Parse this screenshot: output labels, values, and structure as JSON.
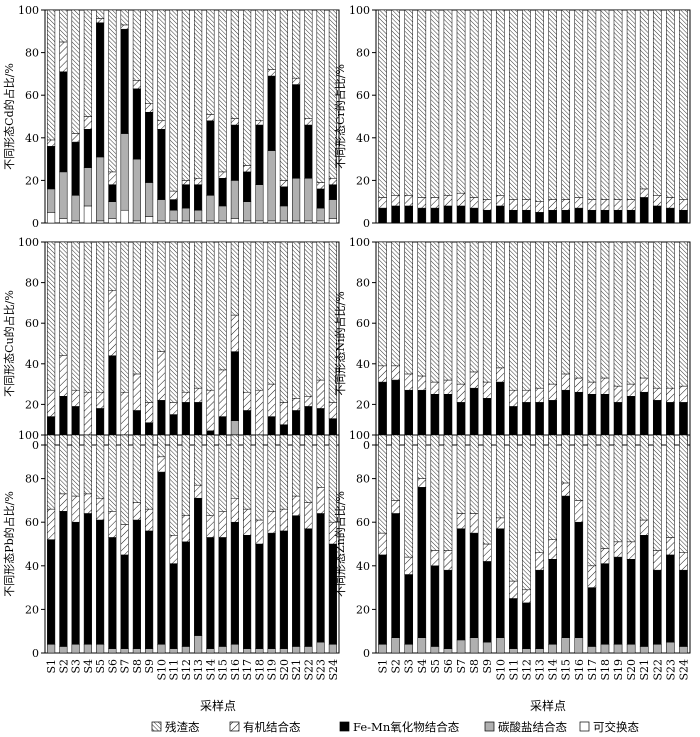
{
  "figure": {
    "x_title": "采样点",
    "legend": [
      {
        "key": "residual",
        "label": "残渣态"
      },
      {
        "key": "organic",
        "label": "有机结合态"
      },
      {
        "key": "femn",
        "label": "Fe-Mn氧化物结合态"
      },
      {
        "key": "carbonate",
        "label": "碳酸盐结合态"
      },
      {
        "key": "exchangeable",
        "label": "可交换态"
      }
    ],
    "colors": {
      "femn": "#000000",
      "carbonate": "#b0b0b0",
      "exchangeable": "#ffffff",
      "organic": "hatch-wide",
      "residual": "hatch-dense"
    }
  },
  "chart_data": [
    {
      "type": "bar",
      "stacked": true,
      "id": "Cd",
      "ylabel": "不同形态Cd的占比/%",
      "ylim": [
        0,
        100
      ],
      "yticks": [
        0,
        20,
        40,
        60,
        80,
        100
      ],
      "categories": [
        "S1",
        "S2",
        "S3",
        "S4",
        "S5",
        "S6",
        "S7",
        "S8",
        "S9",
        "S10",
        "S11",
        "S12",
        "S13",
        "S14",
        "S15",
        "S16",
        "S17",
        "S18",
        "S19",
        "S20",
        "S21",
        "S22",
        "S23",
        "S24"
      ],
      "series": [
        {
          "name": "可交换态",
          "key": "exchangeable",
          "values": [
            5,
            2,
            1,
            8,
            1,
            2,
            6,
            1,
            3,
            1,
            1,
            1,
            1,
            1,
            1,
            2,
            1,
            1,
            1,
            1,
            1,
            1,
            1,
            2
          ]
        },
        {
          "name": "碳酸盐结合态",
          "key": "carbonate",
          "values": [
            11,
            22,
            12,
            18,
            30,
            8,
            36,
            29,
            16,
            10,
            5,
            6,
            5,
            12,
            7,
            18,
            9,
            17,
            33,
            7,
            20,
            20,
            6,
            9
          ]
        },
        {
          "name": "Fe-Mn氧化物结合态",
          "key": "femn",
          "values": [
            20,
            47,
            25,
            18,
            63,
            8,
            49,
            33,
            33,
            33,
            5,
            11,
            12,
            35,
            13,
            26,
            14,
            28,
            35,
            9,
            44,
            25,
            9,
            7
          ]
        },
        {
          "name": "有机结合态",
          "key": "organic",
          "values": [
            3,
            14,
            4,
            6,
            2,
            6,
            2,
            4,
            4,
            4,
            4,
            2,
            3,
            3,
            3,
            3,
            3,
            2,
            3,
            3,
            3,
            3,
            3,
            3
          ]
        },
        {
          "name": "残渣态",
          "key": "residual",
          "values": [
            61,
            15,
            58,
            50,
            4,
            76,
            7,
            33,
            44,
            52,
            85,
            80,
            79,
            49,
            76,
            51,
            73,
            52,
            28,
            80,
            32,
            51,
            81,
            79
          ]
        }
      ]
    },
    {
      "type": "bar",
      "stacked": true,
      "id": "Cr",
      "ylabel": "不同形态Cr的占比/%",
      "ylim": [
        0,
        100
      ],
      "yticks": [
        0,
        20,
        40,
        60,
        80,
        100
      ],
      "categories": [
        "S1",
        "S2",
        "S3",
        "S4",
        "S5",
        "S6",
        "S7",
        "S8",
        "S9",
        "S10",
        "S11",
        "S12",
        "S13",
        "S14",
        "S15",
        "S16",
        "S17",
        "S18",
        "S19",
        "S20",
        "S21",
        "S22",
        "S23",
        "S24"
      ],
      "series": [
        {
          "name": "可交换态",
          "key": "exchangeable",
          "values": [
            0,
            0,
            0,
            0,
            0,
            0,
            0,
            0,
            0,
            0,
            0,
            0,
            0,
            0,
            0,
            0,
            0,
            0,
            0,
            0,
            0,
            0,
            0,
            0
          ]
        },
        {
          "name": "碳酸盐结合态",
          "key": "carbonate",
          "values": [
            0,
            0,
            0,
            0,
            0,
            0,
            0,
            0,
            0,
            0,
            0,
            0,
            0,
            0,
            0,
            0,
            0,
            0,
            0,
            0,
            0,
            0,
            0,
            0
          ]
        },
        {
          "name": "Fe-Mn氧化物结合态",
          "key": "femn",
          "values": [
            7,
            8,
            8,
            7,
            7,
            8,
            8,
            7,
            6,
            8,
            6,
            6,
            5,
            6,
            6,
            7,
            6,
            6,
            6,
            6,
            12,
            8,
            7,
            6
          ]
        },
        {
          "name": "有机结合态",
          "key": "organic",
          "values": [
            5,
            5,
            5,
            5,
            5,
            5,
            6,
            5,
            5,
            5,
            5,
            5,
            5,
            5,
            5,
            5,
            5,
            5,
            5,
            5,
            4,
            5,
            5,
            5
          ]
        },
        {
          "name": "残渣态",
          "key": "residual",
          "values": [
            88,
            87,
            87,
            88,
            88,
            87,
            86,
            88,
            89,
            87,
            89,
            89,
            90,
            89,
            89,
            88,
            89,
            89,
            89,
            89,
            84,
            87,
            88,
            89
          ]
        }
      ]
    },
    {
      "type": "bar",
      "stacked": true,
      "id": "Cu",
      "ylabel": "不同形态Cu的占比/%",
      "ylim": [
        0,
        100
      ],
      "yticks": [
        0,
        20,
        40,
        60,
        80,
        100
      ],
      "categories": [
        "S1",
        "S2",
        "S3",
        "S4",
        "S5",
        "S6",
        "S7",
        "S8",
        "S9",
        "S10",
        "S11",
        "S12",
        "S13",
        "S14",
        "S15",
        "S16",
        "S17",
        "S18",
        "S19",
        "S20",
        "S21",
        "S22",
        "S23",
        "S24"
      ],
      "series": [
        {
          "name": "可交换态",
          "key": "exchangeable",
          "values": [
            0,
            0,
            0,
            0,
            0,
            0,
            0,
            0,
            0,
            0,
            0,
            0,
            0,
            0,
            0,
            0,
            0,
            0,
            0,
            0,
            0,
            0,
            0,
            0
          ]
        },
        {
          "name": "碳酸盐结合态",
          "key": "carbonate",
          "values": [
            2,
            4,
            1,
            1,
            1,
            1,
            1,
            1,
            1,
            3,
            1,
            1,
            1,
            1,
            1,
            12,
            1,
            1,
            1,
            1,
            1,
            1,
            1,
            1
          ]
        },
        {
          "name": "Fe-Mn氧化物结合态",
          "key": "femn",
          "values": [
            12,
            20,
            18,
            3,
            17,
            43,
            3,
            16,
            10,
            19,
            14,
            20,
            20,
            6,
            13,
            34,
            16,
            4,
            13,
            9,
            16,
            18,
            17,
            12
          ]
        },
        {
          "name": "有机结合态",
          "key": "organic",
          "values": [
            13,
            20,
            8,
            22,
            8,
            32,
            22,
            18,
            10,
            24,
            6,
            5,
            7,
            20,
            23,
            18,
            9,
            22,
            16,
            11,
            6,
            5,
            14,
            8
          ]
        },
        {
          "name": "残渣态",
          "key": "residual",
          "values": [
            73,
            56,
            73,
            74,
            74,
            24,
            74,
            65,
            79,
            54,
            79,
            74,
            72,
            73,
            63,
            36,
            74,
            73,
            70,
            79,
            77,
            76,
            68,
            79
          ]
        }
      ]
    },
    {
      "type": "bar",
      "stacked": true,
      "id": "Ni",
      "ylabel": "不同形态Ni的占比/%",
      "ylim": [
        0,
        100
      ],
      "yticks": [
        0,
        20,
        40,
        60,
        80,
        100
      ],
      "categories": [
        "S1",
        "S2",
        "S3",
        "S4",
        "S5",
        "S6",
        "S7",
        "S8",
        "S9",
        "S10",
        "S11",
        "S12",
        "S13",
        "S14",
        "S15",
        "S16",
        "S17",
        "S18",
        "S19",
        "S20",
        "S21",
        "S22",
        "S23",
        "S24"
      ],
      "series": [
        {
          "name": "可交换态",
          "key": "exchangeable",
          "values": [
            0,
            0,
            0,
            0,
            0,
            0,
            0,
            0,
            0,
            0,
            0,
            0,
            0,
            0,
            0,
            0,
            0,
            0,
            0,
            0,
            0,
            0,
            0,
            0
          ]
        },
        {
          "name": "碳酸盐结合态",
          "key": "carbonate",
          "values": [
            1,
            1,
            1,
            1,
            1,
            1,
            1,
            1,
            1,
            1,
            1,
            1,
            1,
            1,
            1,
            1,
            1,
            1,
            1,
            1,
            1,
            1,
            1,
            1
          ]
        },
        {
          "name": "Fe-Mn氧化物结合态",
          "key": "femn",
          "values": [
            30,
            31,
            26,
            26,
            24,
            24,
            20,
            27,
            22,
            30,
            18,
            20,
            20,
            21,
            26,
            25,
            24,
            24,
            20,
            23,
            25,
            21,
            20,
            20
          ]
        },
        {
          "name": "有机结合态",
          "key": "organic",
          "values": [
            8,
            7,
            8,
            7,
            6,
            7,
            9,
            8,
            8,
            7,
            8,
            6,
            7,
            8,
            8,
            7,
            6,
            8,
            8,
            6,
            7,
            6,
            7,
            8
          ]
        },
        {
          "name": "残渣态",
          "key": "residual",
          "values": [
            61,
            61,
            65,
            66,
            69,
            68,
            70,
            64,
            69,
            62,
            73,
            73,
            72,
            70,
            65,
            67,
            69,
            67,
            71,
            70,
            67,
            72,
            72,
            71
          ]
        }
      ]
    },
    {
      "type": "bar",
      "stacked": true,
      "id": "Pb",
      "ylabel": "不同形态Pb的占比/%",
      "ylim": [
        0,
        100
      ],
      "yticks": [
        0,
        20,
        40,
        60,
        80,
        100
      ],
      "categories": [
        "S1",
        "S2",
        "S3",
        "S4",
        "S5",
        "S6",
        "S7",
        "S8",
        "S9",
        "S10",
        "S11",
        "S12",
        "S13",
        "S14",
        "S15",
        "S16",
        "S17",
        "S18",
        "S19",
        "S20",
        "S21",
        "S22",
        "S23",
        "S24"
      ],
      "series": [
        {
          "name": "可交换态",
          "key": "exchangeable",
          "values": [
            0,
            0,
            0,
            0,
            0,
            0,
            0,
            0,
            0,
            0,
            0,
            0,
            0,
            0,
            0,
            0,
            0,
            0,
            0,
            0,
            0,
            0,
            0,
            0
          ]
        },
        {
          "name": "碳酸盐结合态",
          "key": "carbonate",
          "values": [
            4,
            3,
            4,
            4,
            4,
            2,
            2,
            2,
            2,
            4,
            2,
            3,
            8,
            2,
            3,
            4,
            2,
            2,
            2,
            2,
            3,
            3,
            5,
            4
          ]
        },
        {
          "name": "Fe-Mn氧化物结合态",
          "key": "femn",
          "values": [
            48,
            62,
            56,
            60,
            57,
            51,
            43,
            59,
            54,
            79,
            39,
            48,
            63,
            51,
            50,
            56,
            52,
            48,
            53,
            54,
            60,
            54,
            59,
            46
          ]
        },
        {
          "name": "有机结合态",
          "key": "organic",
          "values": [
            14,
            8,
            12,
            9,
            10,
            12,
            14,
            8,
            10,
            7,
            13,
            12,
            6,
            10,
            12,
            11,
            12,
            11,
            10,
            10,
            9,
            12,
            12,
            10
          ]
        },
        {
          "name": "残渣态",
          "key": "residual",
          "values": [
            34,
            27,
            28,
            27,
            29,
            35,
            41,
            31,
            34,
            10,
            46,
            37,
            23,
            37,
            35,
            29,
            34,
            39,
            35,
            34,
            28,
            31,
            24,
            40
          ]
        }
      ]
    },
    {
      "type": "bar",
      "stacked": true,
      "id": "Zn",
      "ylabel": "不同形态Zn的占比/%",
      "ylim": [
        0,
        100
      ],
      "yticks": [
        0,
        20,
        40,
        60,
        80,
        100
      ],
      "categories": [
        "S1",
        "S2",
        "S3",
        "S4",
        "S5",
        "S6",
        "S7",
        "S8",
        "S9",
        "S10",
        "S11",
        "S12",
        "S13",
        "S14",
        "S15",
        "S16",
        "S17",
        "S18",
        "S19",
        "S20",
        "S21",
        "S22",
        "S23",
        "S24"
      ],
      "series": [
        {
          "name": "可交换态",
          "key": "exchangeable",
          "values": [
            0,
            0,
            0,
            0,
            0,
            0,
            0,
            0,
            0,
            0,
            0,
            0,
            0,
            0,
            0,
            0,
            0,
            0,
            0,
            0,
            0,
            0,
            0,
            0
          ]
        },
        {
          "name": "碳酸盐结合态",
          "key": "carbonate",
          "values": [
            4,
            7,
            4,
            7,
            3,
            2,
            6,
            7,
            5,
            7,
            2,
            2,
            2,
            4,
            7,
            7,
            3,
            4,
            4,
            4,
            3,
            4,
            5,
            3
          ]
        },
        {
          "name": "Fe-Mn氧化物结合态",
          "key": "femn",
          "values": [
            41,
            57,
            32,
            69,
            37,
            36,
            51,
            48,
            37,
            50,
            23,
            21,
            36,
            39,
            65,
            53,
            27,
            37,
            40,
            39,
            51,
            34,
            40,
            35
          ]
        },
        {
          "name": "有机结合态",
          "key": "organic",
          "values": [
            10,
            6,
            8,
            4,
            7,
            9,
            7,
            9,
            8,
            5,
            8,
            6,
            8,
            9,
            6,
            10,
            10,
            7,
            7,
            8,
            7,
            9,
            8,
            8
          ]
        },
        {
          "name": "残渣态",
          "key": "residual",
          "values": [
            45,
            30,
            56,
            20,
            53,
            53,
            36,
            36,
            50,
            38,
            67,
            71,
            54,
            48,
            22,
            30,
            60,
            52,
            49,
            49,
            39,
            53,
            47,
            54
          ]
        }
      ]
    }
  ]
}
